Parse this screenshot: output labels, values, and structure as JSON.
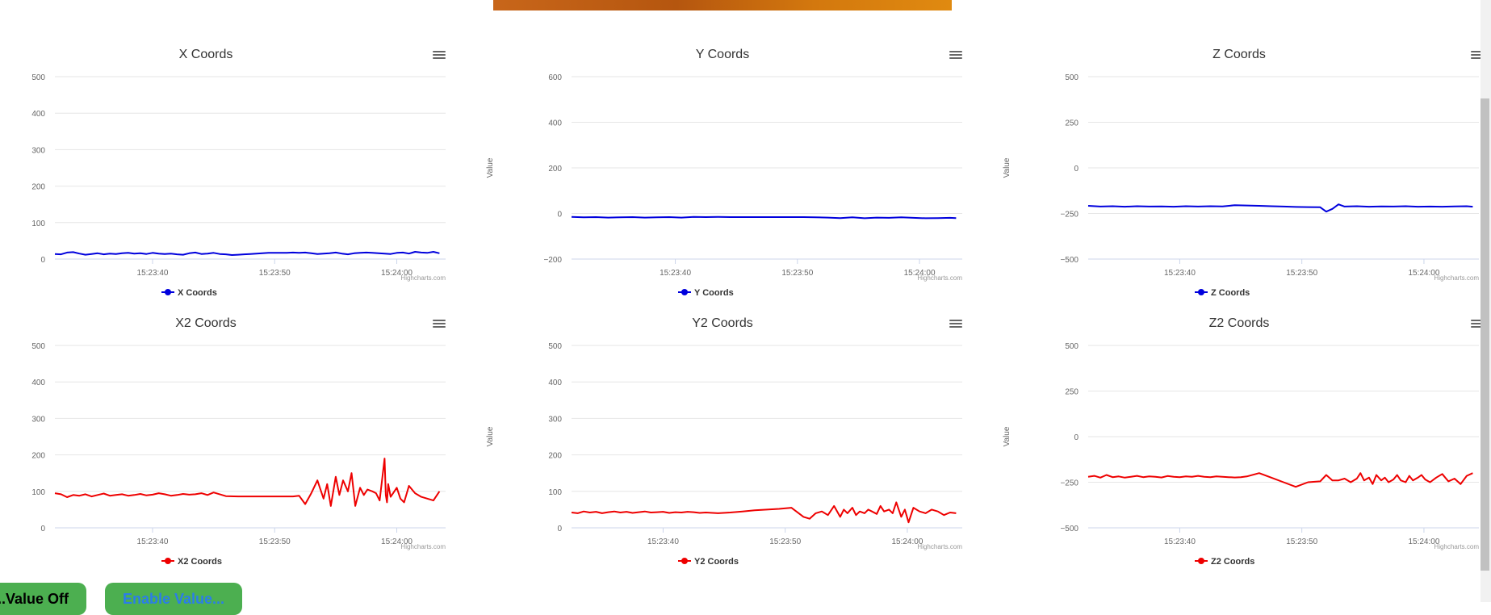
{
  "buttons": {
    "left_label": "...Value Off",
    "right_label": "Enable Value..."
  },
  "credits": "Highcharts.com",
  "menu_icon": "hamburger-menu-icon",
  "colors": {
    "blue": "#0000dd",
    "red": "#ee0000"
  },
  "chart_data": [
    {
      "type": "line",
      "title": "X Coords",
      "ylabel": "",
      "legend": "X Coords",
      "color": "#0000dd",
      "ylim": [
        0,
        500
      ],
      "yticks": [
        0,
        100,
        200,
        300,
        400,
        500
      ],
      "xlim": [
        0,
        32
      ],
      "xticks": [
        {
          "x": 8,
          "label": "15:23:40"
        },
        {
          "x": 18,
          "label": "15:23:50"
        },
        {
          "x": 28,
          "label": "15:24:00"
        }
      ],
      "series": [
        {
          "name": "X Coords",
          "x": [
            0,
            0.5,
            1,
            1.5,
            2,
            2.5,
            3,
            3.5,
            4,
            4.5,
            5,
            5.5,
            6,
            6.5,
            7,
            7.5,
            8,
            8.5,
            9,
            9.5,
            10,
            10.5,
            11,
            11.5,
            12,
            12.5,
            13,
            13.5,
            14,
            14.5,
            15,
            15.5,
            16,
            16.5,
            17,
            17.5,
            18,
            18.5,
            19,
            19.5,
            20,
            20.5,
            21,
            21.5,
            22,
            22.5,
            23,
            23.5,
            24,
            24.5,
            25,
            25.5,
            26,
            26.5,
            27,
            27.5,
            28,
            28.5,
            29,
            29.5,
            30,
            30.5,
            31,
            31.5
          ],
          "values": [
            14,
            13,
            18,
            19,
            15,
            12,
            14,
            16,
            13,
            15,
            14,
            16,
            17,
            15,
            16,
            14,
            17,
            15,
            14,
            15,
            13,
            12,
            16,
            18,
            14,
            15,
            17,
            14,
            13,
            11,
            12,
            13,
            14,
            15,
            16,
            17,
            17,
            17,
            17,
            18,
            17,
            18,
            16,
            14,
            15,
            16,
            18,
            15,
            13,
            16,
            17,
            18,
            17,
            16,
            15,
            14,
            17,
            18,
            15,
            20,
            18,
            17,
            20,
            16
          ]
        }
      ]
    },
    {
      "type": "line",
      "title": "Y Coords",
      "ylabel": "Value",
      "legend": "Y Coords",
      "color": "#0000dd",
      "ylim": [
        -200,
        600
      ],
      "yticks": [
        -200,
        0,
        200,
        400,
        600
      ],
      "xlim": [
        0,
        32
      ],
      "xticks": [
        {
          "x": 8.5,
          "label": "15:23:40"
        },
        {
          "x": 18.5,
          "label": "15:23:50"
        },
        {
          "x": 28.5,
          "label": "15:24:00"
        }
      ],
      "series": [
        {
          "name": "Y Coords",
          "x": [
            0,
            1,
            2,
            3,
            4,
            5,
            6,
            7,
            8,
            9,
            10,
            11,
            12,
            13,
            14,
            15,
            16,
            17,
            18,
            19,
            20,
            21,
            22,
            23,
            24,
            25,
            26,
            27,
            28,
            29,
            30,
            31,
            31.5
          ],
          "values": [
            -15,
            -17,
            -16,
            -18,
            -17,
            -16,
            -18,
            -17,
            -16,
            -18,
            -15,
            -16,
            -15,
            -16,
            -16,
            -16,
            -16,
            -16,
            -16,
            -16,
            -17,
            -18,
            -20,
            -17,
            -21,
            -18,
            -19,
            -17,
            -19,
            -21,
            -20,
            -19,
            -20
          ]
        }
      ]
    },
    {
      "type": "line",
      "title": "Z Coords",
      "ylabel": "Value",
      "legend": "Z Coords",
      "color": "#0000dd",
      "ylim": [
        -500,
        500
      ],
      "yticks": [
        -500,
        -250,
        0,
        250,
        500
      ],
      "xlim": [
        0,
        32
      ],
      "xticks": [
        {
          "x": 7.5,
          "label": "15:23:40"
        },
        {
          "x": 17.5,
          "label": "15:23:50"
        },
        {
          "x": 27.5,
          "label": "15:24:00"
        }
      ],
      "series": [
        {
          "name": "Z Coords",
          "x": [
            0,
            1,
            2,
            3,
            4,
            5,
            6,
            7,
            8,
            9,
            10,
            11,
            12,
            13,
            14,
            15,
            16,
            17,
            18,
            19,
            19.5,
            20,
            20.5,
            21,
            22,
            23,
            24,
            25,
            26,
            27,
            28,
            29,
            30,
            31,
            31.5
          ],
          "values": [
            -208,
            -212,
            -210,
            -213,
            -210,
            -212,
            -211,
            -213,
            -210,
            -212,
            -210,
            -211,
            -205,
            -206,
            -208,
            -210,
            -212,
            -214,
            -215,
            -216,
            -240,
            -225,
            -200,
            -212,
            -210,
            -213,
            -211,
            -212,
            -210,
            -213,
            -212,
            -213,
            -211,
            -210,
            -213
          ]
        }
      ]
    },
    {
      "type": "line",
      "title": "X2 Coords",
      "ylabel": "",
      "legend": "X2 Coords",
      "color": "#ee0000",
      "ylim": [
        0,
        500
      ],
      "yticks": [
        0,
        100,
        200,
        300,
        400,
        500
      ],
      "xlim": [
        0,
        32
      ],
      "xticks": [
        {
          "x": 8,
          "label": "15:23:40"
        },
        {
          "x": 18,
          "label": "15:23:50"
        },
        {
          "x": 28,
          "label": "15:24:00"
        }
      ],
      "series": [
        {
          "name": "X2 Coords",
          "x": [
            0,
            0.5,
            1,
            1.5,
            2,
            2.5,
            3,
            3.5,
            4,
            4.5,
            5,
            5.5,
            6,
            6.5,
            7,
            7.5,
            8,
            8.5,
            9,
            9.5,
            10,
            10.5,
            11,
            11.5,
            12,
            12.5,
            13,
            14,
            15,
            16,
            17,
            18,
            19,
            19.5,
            20,
            20.5,
            21,
            21.5,
            22,
            22.3,
            22.6,
            23,
            23.3,
            23.6,
            24,
            24.3,
            24.6,
            25,
            25.3,
            25.6,
            26,
            26.3,
            26.6,
            27,
            27.1,
            27.2,
            27.3,
            27.5,
            27.7,
            28,
            28.3,
            28.6,
            29,
            29.5,
            30,
            30.5,
            31,
            31.5
          ],
          "values": [
            95,
            92,
            84,
            90,
            88,
            92,
            86,
            90,
            94,
            88,
            90,
            92,
            88,
            90,
            93,
            89,
            91,
            95,
            92,
            88,
            90,
            93,
            91,
            92,
            95,
            90,
            97,
            87,
            86,
            86,
            86,
            86,
            86,
            86,
            88,
            65,
            95,
            130,
            80,
            120,
            60,
            140,
            90,
            130,
            100,
            150,
            60,
            110,
            90,
            105,
            100,
            95,
            75,
            190,
            90,
            70,
            120,
            85,
            95,
            110,
            80,
            70,
            115,
            95,
            85,
            80,
            75,
            100
          ]
        }
      ]
    },
    {
      "type": "line",
      "title": "Y2 Coords",
      "ylabel": "Value",
      "legend": "Y2 Coords",
      "color": "#ee0000",
      "ylim": [
        0,
        500
      ],
      "yticks": [
        0,
        100,
        200,
        300,
        400,
        500
      ],
      "xlim": [
        0,
        32
      ],
      "xticks": [
        {
          "x": 7.5,
          "label": "15:23:40"
        },
        {
          "x": 17.5,
          "label": "15:23:50"
        },
        {
          "x": 27.5,
          "label": "15:24:00"
        }
      ],
      "series": [
        {
          "name": "Y2 Coords",
          "x": [
            0,
            0.5,
            1,
            1.5,
            2,
            2.5,
            3,
            3.5,
            4,
            4.5,
            5,
            5.5,
            6,
            6.5,
            7,
            7.5,
            8,
            8.5,
            9,
            9.5,
            10,
            10.5,
            11,
            12,
            13,
            14,
            15,
            16,
            17,
            18,
            19,
            19.5,
            20,
            20.5,
            21,
            21.5,
            22,
            22.3,
            22.6,
            23,
            23.3,
            23.6,
            24,
            24.3,
            24.6,
            25,
            25.3,
            25.6,
            26,
            26.3,
            26.6,
            27,
            27.3,
            27.6,
            28,
            28.5,
            29,
            29.5,
            30,
            30.5,
            31,
            31.5
          ],
          "values": [
            42,
            40,
            45,
            42,
            44,
            40,
            43,
            45,
            42,
            44,
            41,
            43,
            45,
            42,
            43,
            44,
            41,
            43,
            42,
            44,
            43,
            41,
            42,
            40,
            42,
            45,
            48,
            50,
            52,
            55,
            30,
            25,
            40,
            45,
            35,
            60,
            30,
            50,
            40,
            55,
            35,
            45,
            40,
            50,
            45,
            38,
            60,
            45,
            50,
            40,
            70,
            30,
            50,
            15,
            55,
            45,
            40,
            50,
            45,
            35,
            42,
            40
          ]
        }
      ]
    },
    {
      "type": "line",
      "title": "Z2 Coords",
      "ylabel": "Value",
      "legend": "Z2 Coords",
      "color": "#ee0000",
      "ylim": [
        -500,
        500
      ],
      "yticks": [
        -500,
        -250,
        0,
        250,
        500
      ],
      "xlim": [
        0,
        32
      ],
      "xticks": [
        {
          "x": 7.5,
          "label": "15:23:40"
        },
        {
          "x": 17.5,
          "label": "15:23:50"
        },
        {
          "x": 27.5,
          "label": "15:24:00"
        }
      ],
      "series": [
        {
          "name": "Z2 Coords",
          "x": [
            0,
            0.5,
            1,
            1.5,
            2,
            2.5,
            3,
            3.5,
            4,
            4.5,
            5,
            5.5,
            6,
            6.5,
            7,
            7.5,
            8,
            8.5,
            9,
            9.5,
            10,
            10.5,
            11,
            11.5,
            12,
            12.5,
            13,
            14,
            15,
            16,
            17,
            18,
            19,
            19.5,
            20,
            20.5,
            21,
            21.5,
            22,
            22.3,
            22.6,
            23,
            23.3,
            23.6,
            24,
            24.3,
            24.6,
            25,
            25.3,
            25.6,
            26,
            26.3,
            26.6,
            27,
            27.3,
            27.6,
            28,
            28.5,
            29,
            29.5,
            30,
            30.5,
            31,
            31.5
          ],
          "values": [
            -220,
            -215,
            -225,
            -210,
            -222,
            -218,
            -225,
            -220,
            -215,
            -222,
            -218,
            -220,
            -224,
            -216,
            -220,
            -222,
            -218,
            -220,
            -215,
            -220,
            -222,
            -218,
            -220,
            -222,
            -224,
            -222,
            -218,
            -200,
            -225,
            -250,
            -275,
            -250,
            -245,
            -210,
            -240,
            -240,
            -230,
            -250,
            -230,
            -200,
            -240,
            -225,
            -260,
            -210,
            -240,
            -225,
            -250,
            -235,
            -210,
            -240,
            -250,
            -215,
            -240,
            -225,
            -210,
            -235,
            -250,
            -225,
            -205,
            -245,
            -230,
            -260,
            -215,
            -200
          ]
        }
      ]
    }
  ]
}
